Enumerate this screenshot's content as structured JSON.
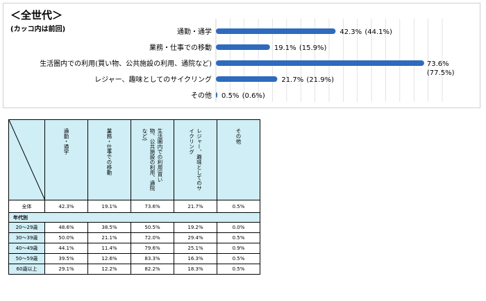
{
  "chart_title": "＜全世代＞",
  "chart_subtitle": "(カッコ内は前回)",
  "chart_data": {
    "type": "bar",
    "orientation": "horizontal",
    "title": "＜全世代＞",
    "subtitle": "(カッコ内は前回)",
    "categories": [
      "通勤・通学",
      "業務・仕事での移動",
      "生活圏内での利用(買い物、公共施設の利用、通院など)",
      "レジャー、趣味としてのサイクリング",
      "その他"
    ],
    "values": [
      42.3,
      19.1,
      73.6,
      21.7,
      0.5
    ],
    "value_labels": [
      "42.3%",
      "19.1%",
      "73.6%",
      "21.7%",
      "0.5%"
    ],
    "previous_labels": [
      "(44.1%)",
      "(15.9%)",
      "(77.5%)",
      "(21.9%)",
      "(0.6%)"
    ],
    "xlim": [
      0,
      80
    ],
    "grid": true,
    "bar_color": "#2e6bbf"
  },
  "table": {
    "headers": [
      "通勤・通学",
      "業務・仕事での移動",
      "生活圏内での利用(買い物、公共施設の利用、通院など)",
      "レジャー、趣味としてのサイクリング",
      "その他"
    ],
    "total_row": {
      "label": "全体",
      "values": [
        "42.3%",
        "19.1%",
        "73.6%",
        "21.7%",
        "0.5%"
      ]
    },
    "group_label": "年代別",
    "rows": [
      {
        "label": "20～29歳",
        "values": [
          "48.6%",
          "38.5%",
          "50.5%",
          "19.2%",
          "0.0%"
        ]
      },
      {
        "label": "30～39歳",
        "values": [
          "50.0%",
          "21.1%",
          "72.0%",
          "29.4%",
          "0.5%"
        ]
      },
      {
        "label": "40～49歳",
        "values": [
          "44.1%",
          "11.4%",
          "79.6%",
          "25.1%",
          "0.9%"
        ]
      },
      {
        "label": "50～59歳",
        "values": [
          "39.5%",
          "12.6%",
          "83.3%",
          "16.3%",
          "0.5%"
        ]
      },
      {
        "label": "60歳以上",
        "values": [
          "29.1%",
          "12.2%",
          "82.2%",
          "18.3%",
          "0.5%"
        ]
      }
    ]
  },
  "colors": {
    "bar": "#2e6bbf",
    "header_bg": "#cfeef6",
    "grid": "#d0d0d0"
  }
}
